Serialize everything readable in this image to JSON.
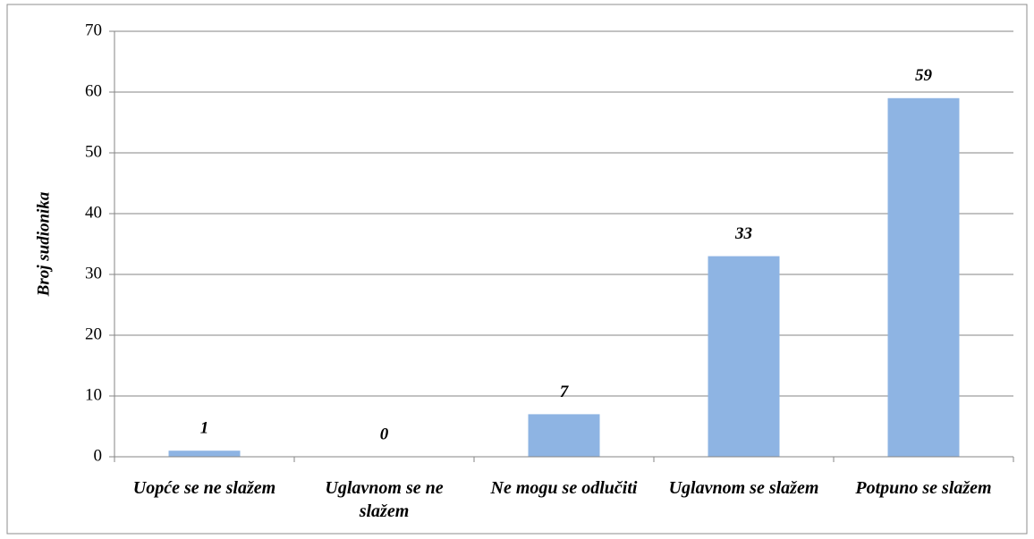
{
  "chart_data": {
    "type": "bar",
    "y_label": "Broj sudionika",
    "categories": [
      "Uopće se ne slažem",
      "Uglavnom se ne slažem",
      "Ne mogu se odlučiti",
      "Uglavnom se slažem",
      "Potpuno se slažem"
    ],
    "values": [
      1,
      0,
      7,
      33,
      59
    ],
    "color": "#8eb4e3",
    "ylim": [
      0,
      70
    ],
    "yticks": [
      0,
      10,
      20,
      30,
      40,
      50,
      60,
      70
    ],
    "grid": true,
    "data_labels": true
  }
}
